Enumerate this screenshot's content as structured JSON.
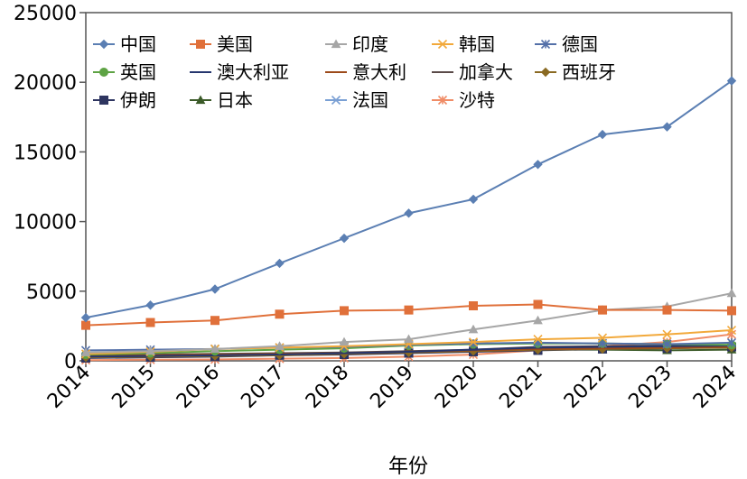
{
  "chart_data": {
    "type": "line",
    "title": "",
    "xlabel": "年份",
    "ylabel": "",
    "x": [
      "2014",
      "2015",
      "2016",
      "2017",
      "2018",
      "2019",
      "2020",
      "2021",
      "2022",
      "2023",
      "2024"
    ],
    "ylim": [
      0,
      25000
    ],
    "yticks": [
      "0",
      "5000",
      "10000",
      "15000",
      "20000",
      "25000"
    ],
    "grid": false,
    "legend_position": "top-left",
    "series": [
      {
        "name": "中国",
        "color": "#5b7fb3",
        "marker": "diamond",
        "values": [
          3100,
          4000,
          5150,
          7000,
          8800,
          10600,
          11600,
          14100,
          16250,
          16800,
          20100
        ]
      },
      {
        "name": "美国",
        "color": "#e0703a",
        "marker": "square",
        "values": [
          2550,
          2750,
          2900,
          3350,
          3600,
          3650,
          3950,
          4050,
          3650,
          3650,
          3600
        ]
      },
      {
        "name": "印度",
        "color": "#a6a6a6",
        "marker": "triangle",
        "values": [
          600,
          700,
          850,
          1050,
          1350,
          1550,
          2250,
          2900,
          3650,
          3900,
          4850
        ]
      },
      {
        "name": "韩国",
        "color": "#f2a93b",
        "marker": "x",
        "values": [
          500,
          650,
          850,
          950,
          1050,
          1200,
          1350,
          1550,
          1650,
          1900,
          2200
        ]
      },
      {
        "name": "德国",
        "color": "#5470a8",
        "marker": "asterisk",
        "values": [
          750,
          800,
          850,
          950,
          1000,
          1150,
          1250,
          1300,
          1250,
          1200,
          1300
        ]
      },
      {
        "name": "英国",
        "color": "#5ea344",
        "marker": "circle",
        "values": [
          450,
          550,
          700,
          800,
          900,
          1100,
          1200,
          1250,
          1250,
          1200,
          1150
        ]
      },
      {
        "name": "澳大利亚",
        "color": "#26366e",
        "marker": "dash",
        "values": [
          300,
          350,
          400,
          450,
          550,
          650,
          800,
          950,
          1000,
          1050,
          1100
        ]
      },
      {
        "name": "意大利",
        "color": "#9c4a1a",
        "marker": "dash",
        "values": [
          350,
          400,
          450,
          500,
          550,
          650,
          750,
          850,
          900,
          950,
          1000
        ]
      },
      {
        "name": "加拿大",
        "color": "#5a4a48",
        "marker": "dash",
        "values": [
          400,
          450,
          500,
          550,
          600,
          700,
          800,
          1000,
          1050,
          1100,
          1100
        ]
      },
      {
        "name": "西班牙",
        "color": "#8a6a22",
        "marker": "diamond",
        "values": [
          250,
          300,
          350,
          400,
          500,
          600,
          700,
          800,
          850,
          900,
          950
        ]
      },
      {
        "name": "伊朗",
        "color": "#2e3560",
        "marker": "square",
        "values": [
          200,
          250,
          300,
          400,
          450,
          550,
          650,
          750,
          850,
          900,
          1000
        ]
      },
      {
        "name": "日本",
        "color": "#3b5a28",
        "marker": "triangle",
        "values": [
          300,
          350,
          400,
          450,
          500,
          600,
          700,
          800,
          800,
          750,
          800
        ]
      },
      {
        "name": "法国",
        "color": "#7aa0d4",
        "marker": "x",
        "values": [
          300,
          350,
          400,
          500,
          550,
          650,
          750,
          850,
          900,
          950,
          1000
        ]
      },
      {
        "name": "沙特",
        "color": "#f08c66",
        "marker": "asterisk",
        "values": [
          50,
          80,
          100,
          150,
          200,
          300,
          450,
          750,
          1050,
          1350,
          1900
        ]
      }
    ]
  }
}
